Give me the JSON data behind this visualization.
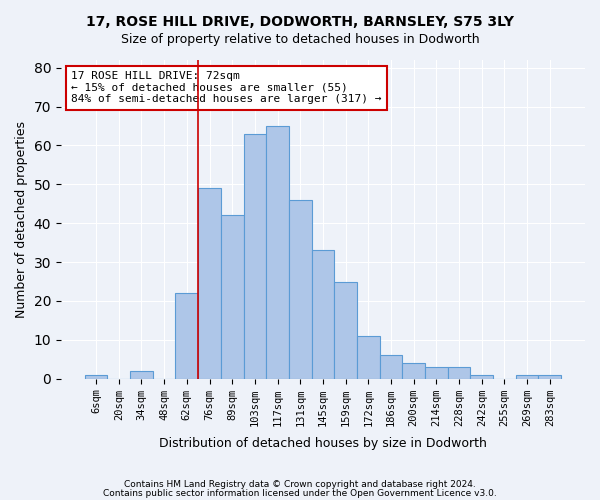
{
  "title1": "17, ROSE HILL DRIVE, DODWORTH, BARNSLEY, S75 3LY",
  "title2": "Size of property relative to detached houses in Dodworth",
  "xlabel": "Distribution of detached houses by size in Dodworth",
  "ylabel": "Number of detached properties",
  "bin_labels": [
    "6sqm",
    "20sqm",
    "34sqm",
    "48sqm",
    "62sqm",
    "76sqm",
    "89sqm",
    "103sqm",
    "117sqm",
    "131sqm",
    "145sqm",
    "159sqm",
    "172sqm",
    "186sqm",
    "200sqm",
    "214sqm",
    "228sqm",
    "242sqm",
    "255sqm",
    "269sqm",
    "283sqm"
  ],
  "bin_counts": [
    1,
    0,
    2,
    0,
    22,
    49,
    42,
    63,
    65,
    46,
    33,
    25,
    11,
    6,
    4,
    3,
    3,
    1,
    0,
    1,
    1
  ],
  "bar_color": "#aec6e8",
  "bar_edge_color": "#5b9bd5",
  "vline_x_index": 5,
  "vline_color": "#cc0000",
  "annotation_line1": "17 ROSE HILL DRIVE: 72sqm",
  "annotation_line2": "← 15% of detached houses are smaller (55)",
  "annotation_line3": "84% of semi-detached houses are larger (317) →",
  "annotation_box_facecolor": "white",
  "annotation_box_edgecolor": "#cc0000",
  "ylim": [
    0,
    82
  ],
  "footer1": "Contains HM Land Registry data © Crown copyright and database right 2024.",
  "footer2": "Contains public sector information licensed under the Open Government Licence v3.0.",
  "bg_color": "#eef2f9",
  "grid_color": "#ffffff"
}
